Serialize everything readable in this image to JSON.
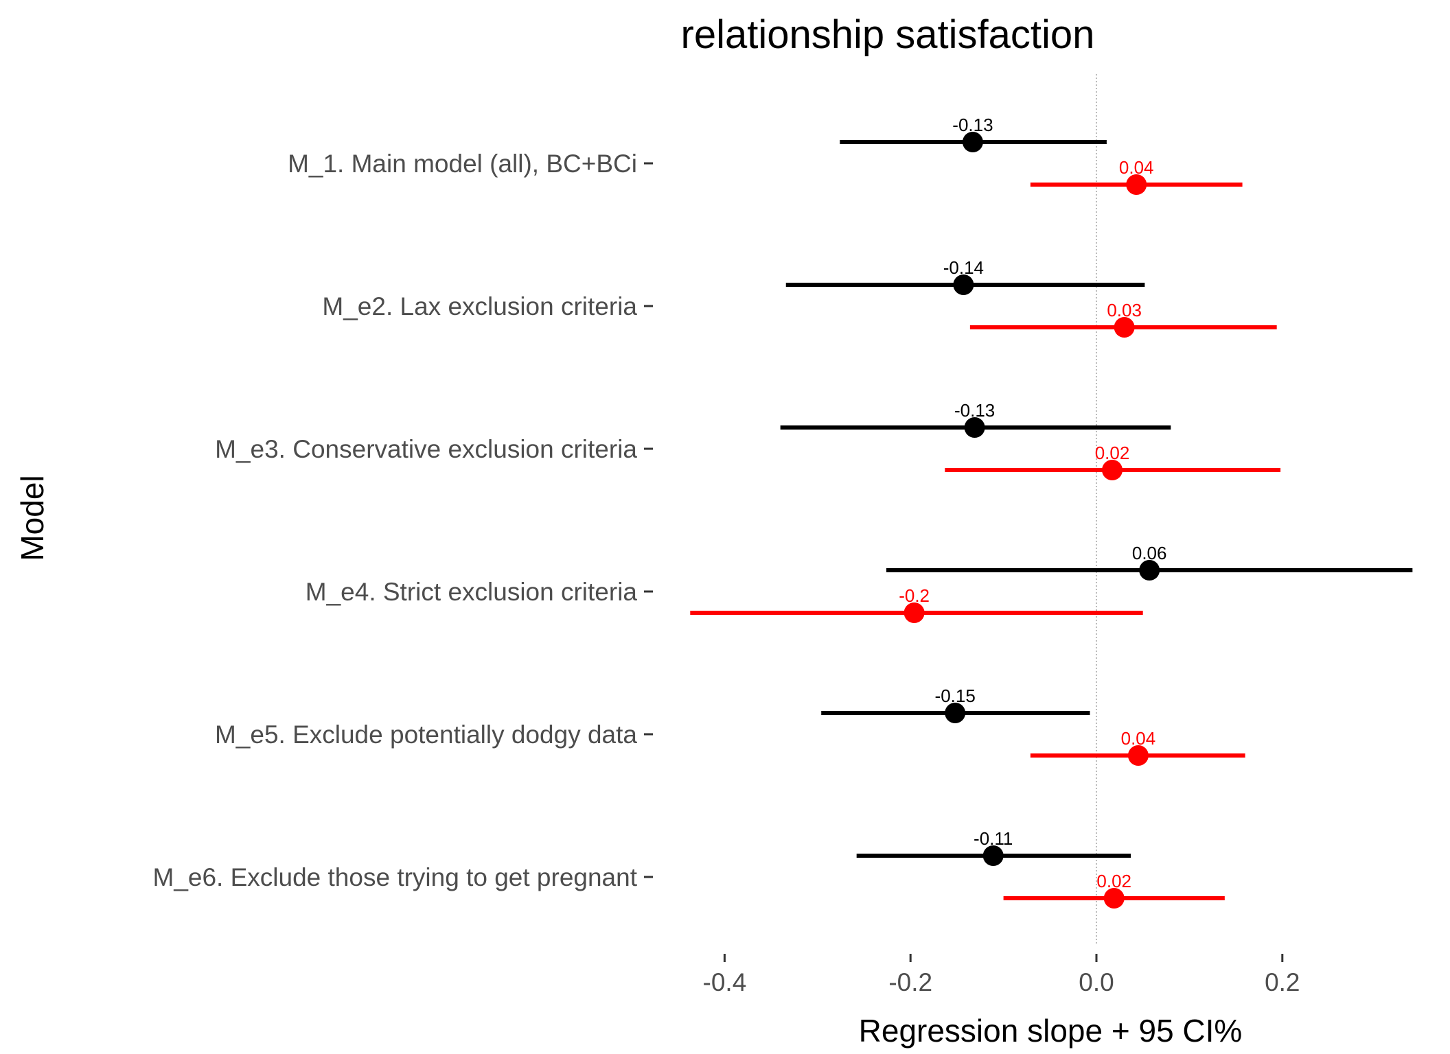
{
  "chart_data": {
    "type": "forest",
    "title": "relationship satisfaction",
    "xlabel": "Regression slope + 95 CI%",
    "ylabel": "Model",
    "xlim": [
      -0.44,
      0.345
    ],
    "x_ticks": [
      -0.4,
      -0.2,
      0.0,
      0.2
    ],
    "x_tick_labels": [
      "-0.4",
      "-0.2",
      "0.0",
      "0.2"
    ],
    "reference_line": 0,
    "grid": false,
    "legend": "none",
    "categories": [
      "M_1. Main model (all), BC+BCi",
      "M_e2. Lax exclusion criteria",
      "M_e3. Conservative exclusion criteria",
      "M_e4. Strict exclusion criteria",
      "M_e5. Exclude potentially dodgy data",
      "M_e6. Exclude those trying to get pregnant"
    ],
    "series": [
      {
        "color": "#000000",
        "estimates": [
          -0.133,
          -0.143,
          -0.131,
          0.057,
          -0.152,
          -0.111
        ],
        "lower": [
          -0.276,
          -0.334,
          -0.34,
          -0.226,
          -0.296,
          -0.258
        ],
        "upper": [
          0.011,
          0.052,
          0.08,
          0.34,
          -0.007,
          0.037
        ],
        "labels": [
          "-0.13",
          "-0.14",
          "-0.13",
          "0.06",
          "-0.15",
          "-0.11"
        ]
      },
      {
        "color": "#ff0000",
        "estimates": [
          0.043,
          0.03,
          0.017,
          -0.196,
          0.045,
          0.019
        ],
        "lower": [
          -0.071,
          -0.136,
          -0.163,
          -0.437,
          -0.071,
          -0.1
        ],
        "upper": [
          0.157,
          0.194,
          0.198,
          0.05,
          0.16,
          0.138
        ],
        "labels": [
          "0.04",
          "0.03",
          "0.02",
          "-0.2",
          "0.04",
          "0.02"
        ]
      }
    ]
  }
}
